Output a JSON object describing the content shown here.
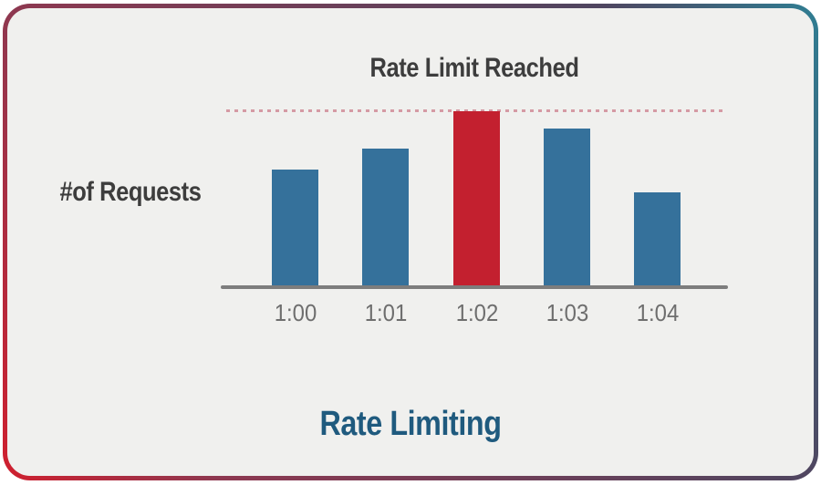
{
  "card": {
    "outer_background": "#FFFFFF",
    "background": "#F0F0EE",
    "border_gradient": [
      "#D01F2E",
      "#8E3850",
      "#4F4660",
      "#2F7E93"
    ]
  },
  "chart_data": {
    "type": "bar",
    "title": "Rate Limit Reached",
    "footer_title": "Rate Limiting",
    "ylabel": "#of Requests",
    "xlabel": "",
    "categories": [
      "1:00",
      "1:01",
      "1:02",
      "1:03",
      "1:04"
    ],
    "values": [
      67,
      79,
      100,
      90,
      54
    ],
    "value_scale": "relative to rate limit = 100",
    "limit_value": 100,
    "limit_reached_category": "1:02",
    "limit_line_style": "dotted",
    "grid": false,
    "legend": "none",
    "axis_numeric_labels": false,
    "colors": {
      "bar": "#35719B",
      "bar_limit_reached": "#C3202F",
      "limit_line": "#D59AA4",
      "axis_line": "#7D7D7D",
      "tick_label": "#6E6E6E",
      "title_text": "#3D3D3D",
      "ylabel_text": "#3D3D3D",
      "footer_title_text": "#1F5A7E"
    }
  }
}
